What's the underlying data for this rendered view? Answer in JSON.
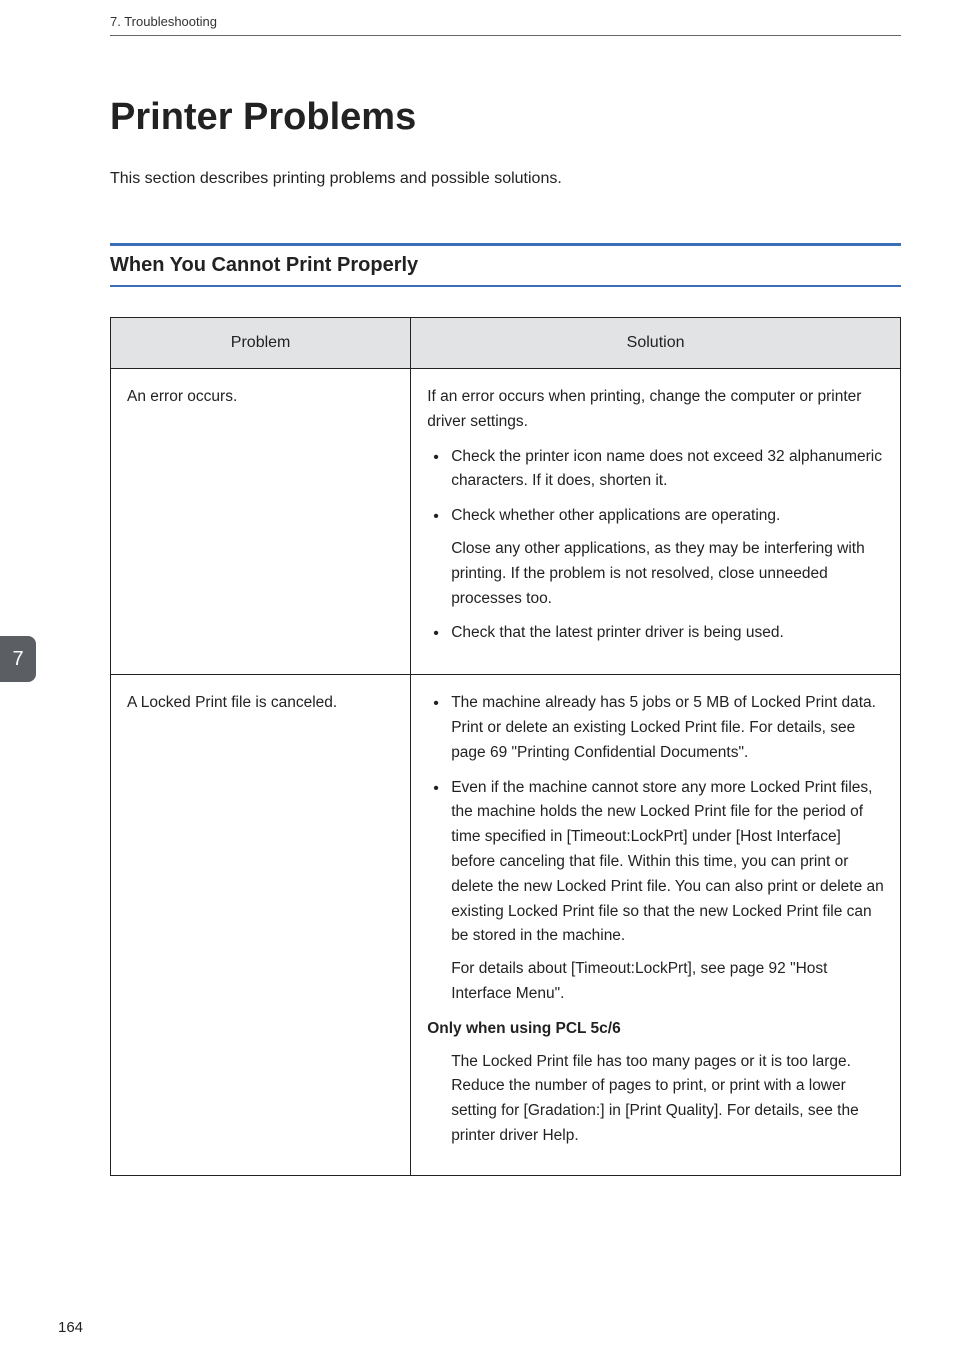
{
  "runningHeader": "7. Troubleshooting",
  "pageTitle": "Printer Problems",
  "intro": "This section describes printing problems and possible solutions.",
  "section": {
    "title": "When You Cannot Print Properly",
    "ruleColor": "#3b6db8"
  },
  "sideTab": {
    "label": "7",
    "bgColor": "#5b5f63",
    "textColor": "#ffffff"
  },
  "pageNumber": "164",
  "table": {
    "headerBg": "#e1e3e5",
    "borderColor": "#222222",
    "columns": [
      "Problem",
      "Solution"
    ],
    "colWidths": [
      "38%",
      "62%"
    ],
    "rows": [
      {
        "problem": "An error occurs.",
        "solution": {
          "lead": "If an error occurs when printing, change the computer or printer driver settings.",
          "bullets": [
            {
              "text": "Check the printer icon name does not exceed 32 alphanumeric characters. If it does, shorten it."
            },
            {
              "text": "Check whether other applications are operating.",
              "sub": "Close any other applications, as they may be interfering with printing. If the problem is not resolved, close unneeded processes too."
            },
            {
              "text": "Check that the latest printer driver is being used."
            }
          ]
        }
      },
      {
        "problem": "A Locked Print file is canceled.",
        "solution": {
          "bullets": [
            {
              "text": "The machine already has 5 jobs or 5 MB of Locked Print data. Print or delete an existing Locked Print file. For details, see page 69 \"Printing Confidential Documents\"."
            },
            {
              "text": "Even if the machine cannot store any more Locked Print files, the machine holds the new Locked Print file for the period of time specified in [Timeout:LockPrt] under [Host Interface] before canceling that file. Within this time, you can print or delete the new Locked Print file. You can also print or delete an existing Locked Print file so that the new Locked Print file can be stored in the machine.",
              "sub": "For details about [Timeout:LockPrt], see page 92 \"Host Interface Menu\"."
            }
          ],
          "subhead": "Only when using PCL 5c/6",
          "subheadBody": "The Locked Print file has too many pages or it is too large. Reduce the number of pages to print, or print with a lower setting for [Gradation:] in [Print Quality]. For details, see the printer driver Help."
        }
      }
    ]
  }
}
